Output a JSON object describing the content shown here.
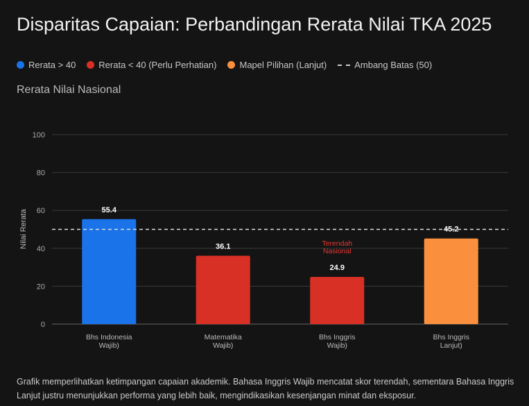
{
  "title": "Disparitas Capaian: Perbandingan Rerata Nilai TKA 2025",
  "legend": [
    {
      "label": "Rerata > 40",
      "color": "#1a73e8"
    },
    {
      "label": "Rerata < 40 (Perlu Perhatian)",
      "color": "#d93025"
    },
    {
      "label": "Mapel Pilihan (Lanjut)",
      "color": "#fa903e"
    },
    {
      "label": "Ambang Batas (50)",
      "style": "dashed"
    }
  ],
  "subtitle": "Rerata Nilai Nasional",
  "chart_data": {
    "type": "bar",
    "ylabel": "Nilai Rerata",
    "ylim": [
      0,
      100
    ],
    "yticks": [
      0,
      20,
      40,
      60,
      80,
      100
    ],
    "grid": true,
    "categories": [
      [
        "Bhs Indonesia",
        "Wajib)"
      ],
      [
        "Matematika",
        "Wajib)"
      ],
      [
        "Bhs Inggris",
        "Wajib)"
      ],
      [
        "Bhs Inggris",
        "Lanjut)"
      ]
    ],
    "values": [
      55.4,
      36.1,
      24.9,
      45.2
    ],
    "colors": [
      "#1a73e8",
      "#d93025",
      "#d93025",
      "#fa903e"
    ],
    "threshold": 50,
    "annotations": [
      {
        "category_index": 2,
        "text": [
          "Terendah",
          "Nasional"
        ],
        "color": "#e53935"
      }
    ]
  },
  "caption": "Grafik memperlihatkan ketimpangan capaian akademik. Bahasa Inggris Wajib mencatat skor terendah, sementara Bahasa Inggris Lanjut justru menunjukkan performa yang lebih baik, mengindikasikan kesenjangan minat dan eksposur."
}
